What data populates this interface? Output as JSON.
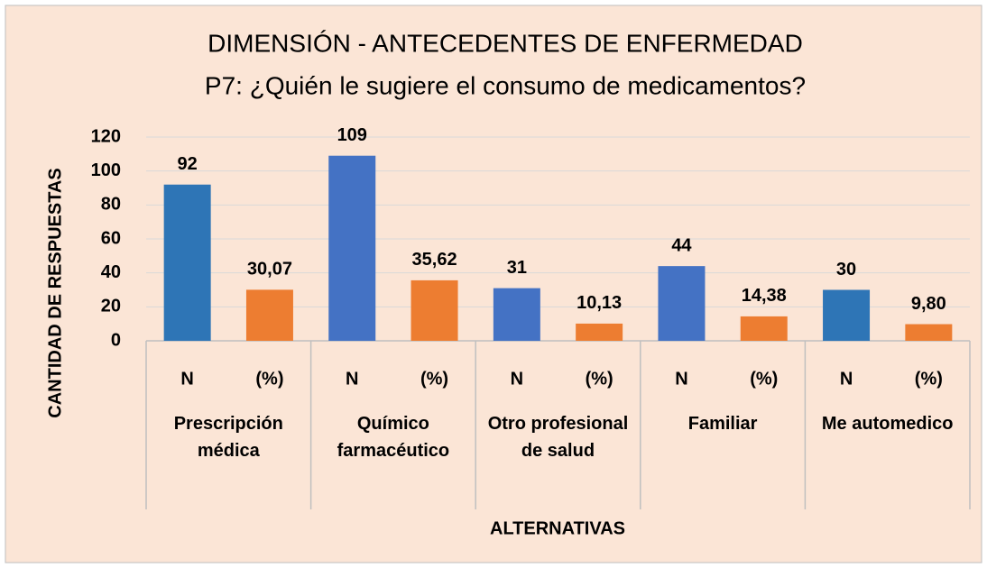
{
  "chart_data": {
    "type": "bar",
    "title": "DIMENSIÓN - ANTECEDENTES DE ENFERMEDAD",
    "subtitle": "P7: ¿Quién le sugiere el consumo de medicamentos?",
    "y_label": "CANTIDAD DE RESPUESTAS",
    "x_label": "ALTERNATIVAS",
    "categories": [
      "N",
      "(%)",
      "N",
      "(%)",
      "N",
      "(%)",
      "N",
      "(%)",
      "N",
      "(%)"
    ],
    "groups": [
      "Prescripción médica",
      "Químico farmacéutico",
      "Otro profesional  de salud",
      "Familiar",
      "Me automedico"
    ],
    "values": [
      92,
      30.07,
      109,
      35.62,
      31,
      10.13,
      44,
      14.38,
      30,
      9.8
    ],
    "value_labels": [
      "92",
      "30,07",
      "109",
      "35,62",
      "31",
      "10,13",
      "44",
      "14,38",
      "30",
      "9,80"
    ],
    "colors": [
      "#2e75b6",
      "#ed7d31",
      "#4472c4",
      "#ed7d31",
      "#4472c4",
      "#ed7d31",
      "#4472c4",
      "#ed7d31",
      "#2e75b6",
      "#ed7d31"
    ],
    "ylim": [
      0,
      120
    ],
    "yticks": [
      0,
      20,
      40,
      60,
      80,
      100,
      120
    ],
    "grid": true
  }
}
